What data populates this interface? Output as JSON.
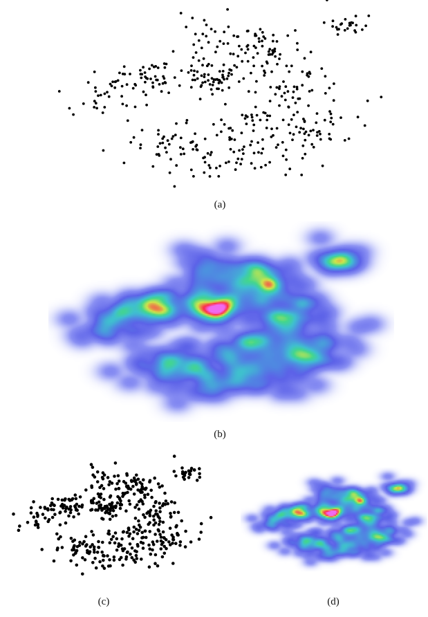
{
  "figure": {
    "captions": [
      "(a)",
      "(b)",
      "(c)",
      "(d)"
    ]
  },
  "chart_data": [
    {
      "type": "scatter",
      "panel": "a",
      "title": "",
      "xlabel": "",
      "ylabel": "",
      "xlim": [
        0,
        1
      ],
      "ylim": [
        0,
        1
      ],
      "grid": false,
      "color": "#000000",
      "seed": 7,
      "point_count": 480,
      "clusters": [
        {
          "cx": 0.47,
          "cy": 0.58,
          "sx": 0.035,
          "sy": 0.04,
          "n": 55
        },
        {
          "cx": 0.63,
          "cy": 0.74,
          "sx": 0.05,
          "sy": 0.06,
          "n": 55
        },
        {
          "cx": 0.28,
          "cy": 0.58,
          "sx": 0.05,
          "sy": 0.05,
          "n": 50
        },
        {
          "cx": 0.15,
          "cy": 0.52,
          "sx": 0.05,
          "sy": 0.07,
          "n": 30
        },
        {
          "cx": 0.86,
          "cy": 0.86,
          "sx": 0.04,
          "sy": 0.035,
          "n": 25
        },
        {
          "cx": 0.55,
          "cy": 0.18,
          "sx": 0.08,
          "sy": 0.07,
          "n": 60
        },
        {
          "cx": 0.73,
          "cy": 0.55,
          "sx": 0.06,
          "sy": 0.07,
          "n": 50
        },
        {
          "cx": 0.36,
          "cy": 0.25,
          "sx": 0.07,
          "sy": 0.07,
          "n": 45
        },
        {
          "cx": 0.47,
          "cy": 0.8,
          "sx": 0.06,
          "sy": 0.07,
          "n": 35
        },
        {
          "cx": 0.8,
          "cy": 0.3,
          "sx": 0.06,
          "sy": 0.06,
          "n": 40
        },
        {
          "cx": 0.62,
          "cy": 0.35,
          "sx": 0.07,
          "sy": 0.06,
          "n": 35
        }
      ],
      "outliers": [
        [
          0.81,
          1.0
        ],
        [
          0.97,
          0.49
        ],
        [
          0.93,
          0.47
        ],
        [
          0.02,
          0.52
        ],
        [
          0.36,
          0.02
        ]
      ]
    },
    {
      "type": "heatmap",
      "panel": "b",
      "title": "",
      "xlabel": "",
      "ylabel": "",
      "xlim": [
        0,
        1
      ],
      "ylim": [
        0,
        1
      ],
      "colormap": [
        "#ffffff",
        "#c9cdfb",
        "#8a90f3",
        "#5c62e8",
        "#4d8fe0",
        "#3fc0cf",
        "#43d68d",
        "#cfe64a",
        "#ff2a4a",
        "#f06af0"
      ],
      "colormap_stops": [
        0,
        0.08,
        0.18,
        0.35,
        0.48,
        0.58,
        0.66,
        0.75,
        0.85,
        0.92
      ],
      "hotspots": [
        {
          "cx": 0.48,
          "cy": 0.53,
          "label": "peak"
        },
        {
          "cx": 0.63,
          "cy": 0.73,
          "label": "peak"
        },
        {
          "cx": 0.7,
          "cy": 0.72,
          "label": "peak"
        },
        {
          "cx": 0.63,
          "cy": 0.62,
          "label": "peak"
        },
        {
          "cx": 0.24,
          "cy": 0.55,
          "label": "peak"
        },
        {
          "cx": 0.31,
          "cy": 0.51,
          "label": "peak"
        },
        {
          "cx": 0.9,
          "cy": 0.86,
          "label": "peak"
        },
        {
          "cx": 0.56,
          "cy": 0.34,
          "label": "peak"
        }
      ]
    },
    {
      "type": "scatter",
      "panel": "c",
      "title": "",
      "xlabel": "",
      "ylabel": "",
      "xlim": [
        0,
        1
      ],
      "ylim": [
        0,
        1
      ],
      "grid": false,
      "color": "#000000",
      "seed": 19,
      "point_count": 480
    },
    {
      "type": "heatmap",
      "panel": "d",
      "title": "",
      "xlabel": "",
      "ylabel": "",
      "xlim": [
        0,
        1
      ],
      "ylim": [
        0,
        1
      ],
      "colormap": [
        "#ffffff",
        "#c9cdfb",
        "#8a90f3",
        "#5c62e8",
        "#4d8fe0",
        "#3fc0cf",
        "#43d68d",
        "#cfe64a",
        "#ff2a4a",
        "#f06af0"
      ],
      "colormap_stops": [
        0,
        0.08,
        0.18,
        0.35,
        0.48,
        0.58,
        0.66,
        0.75,
        0.85,
        0.92
      ]
    }
  ]
}
